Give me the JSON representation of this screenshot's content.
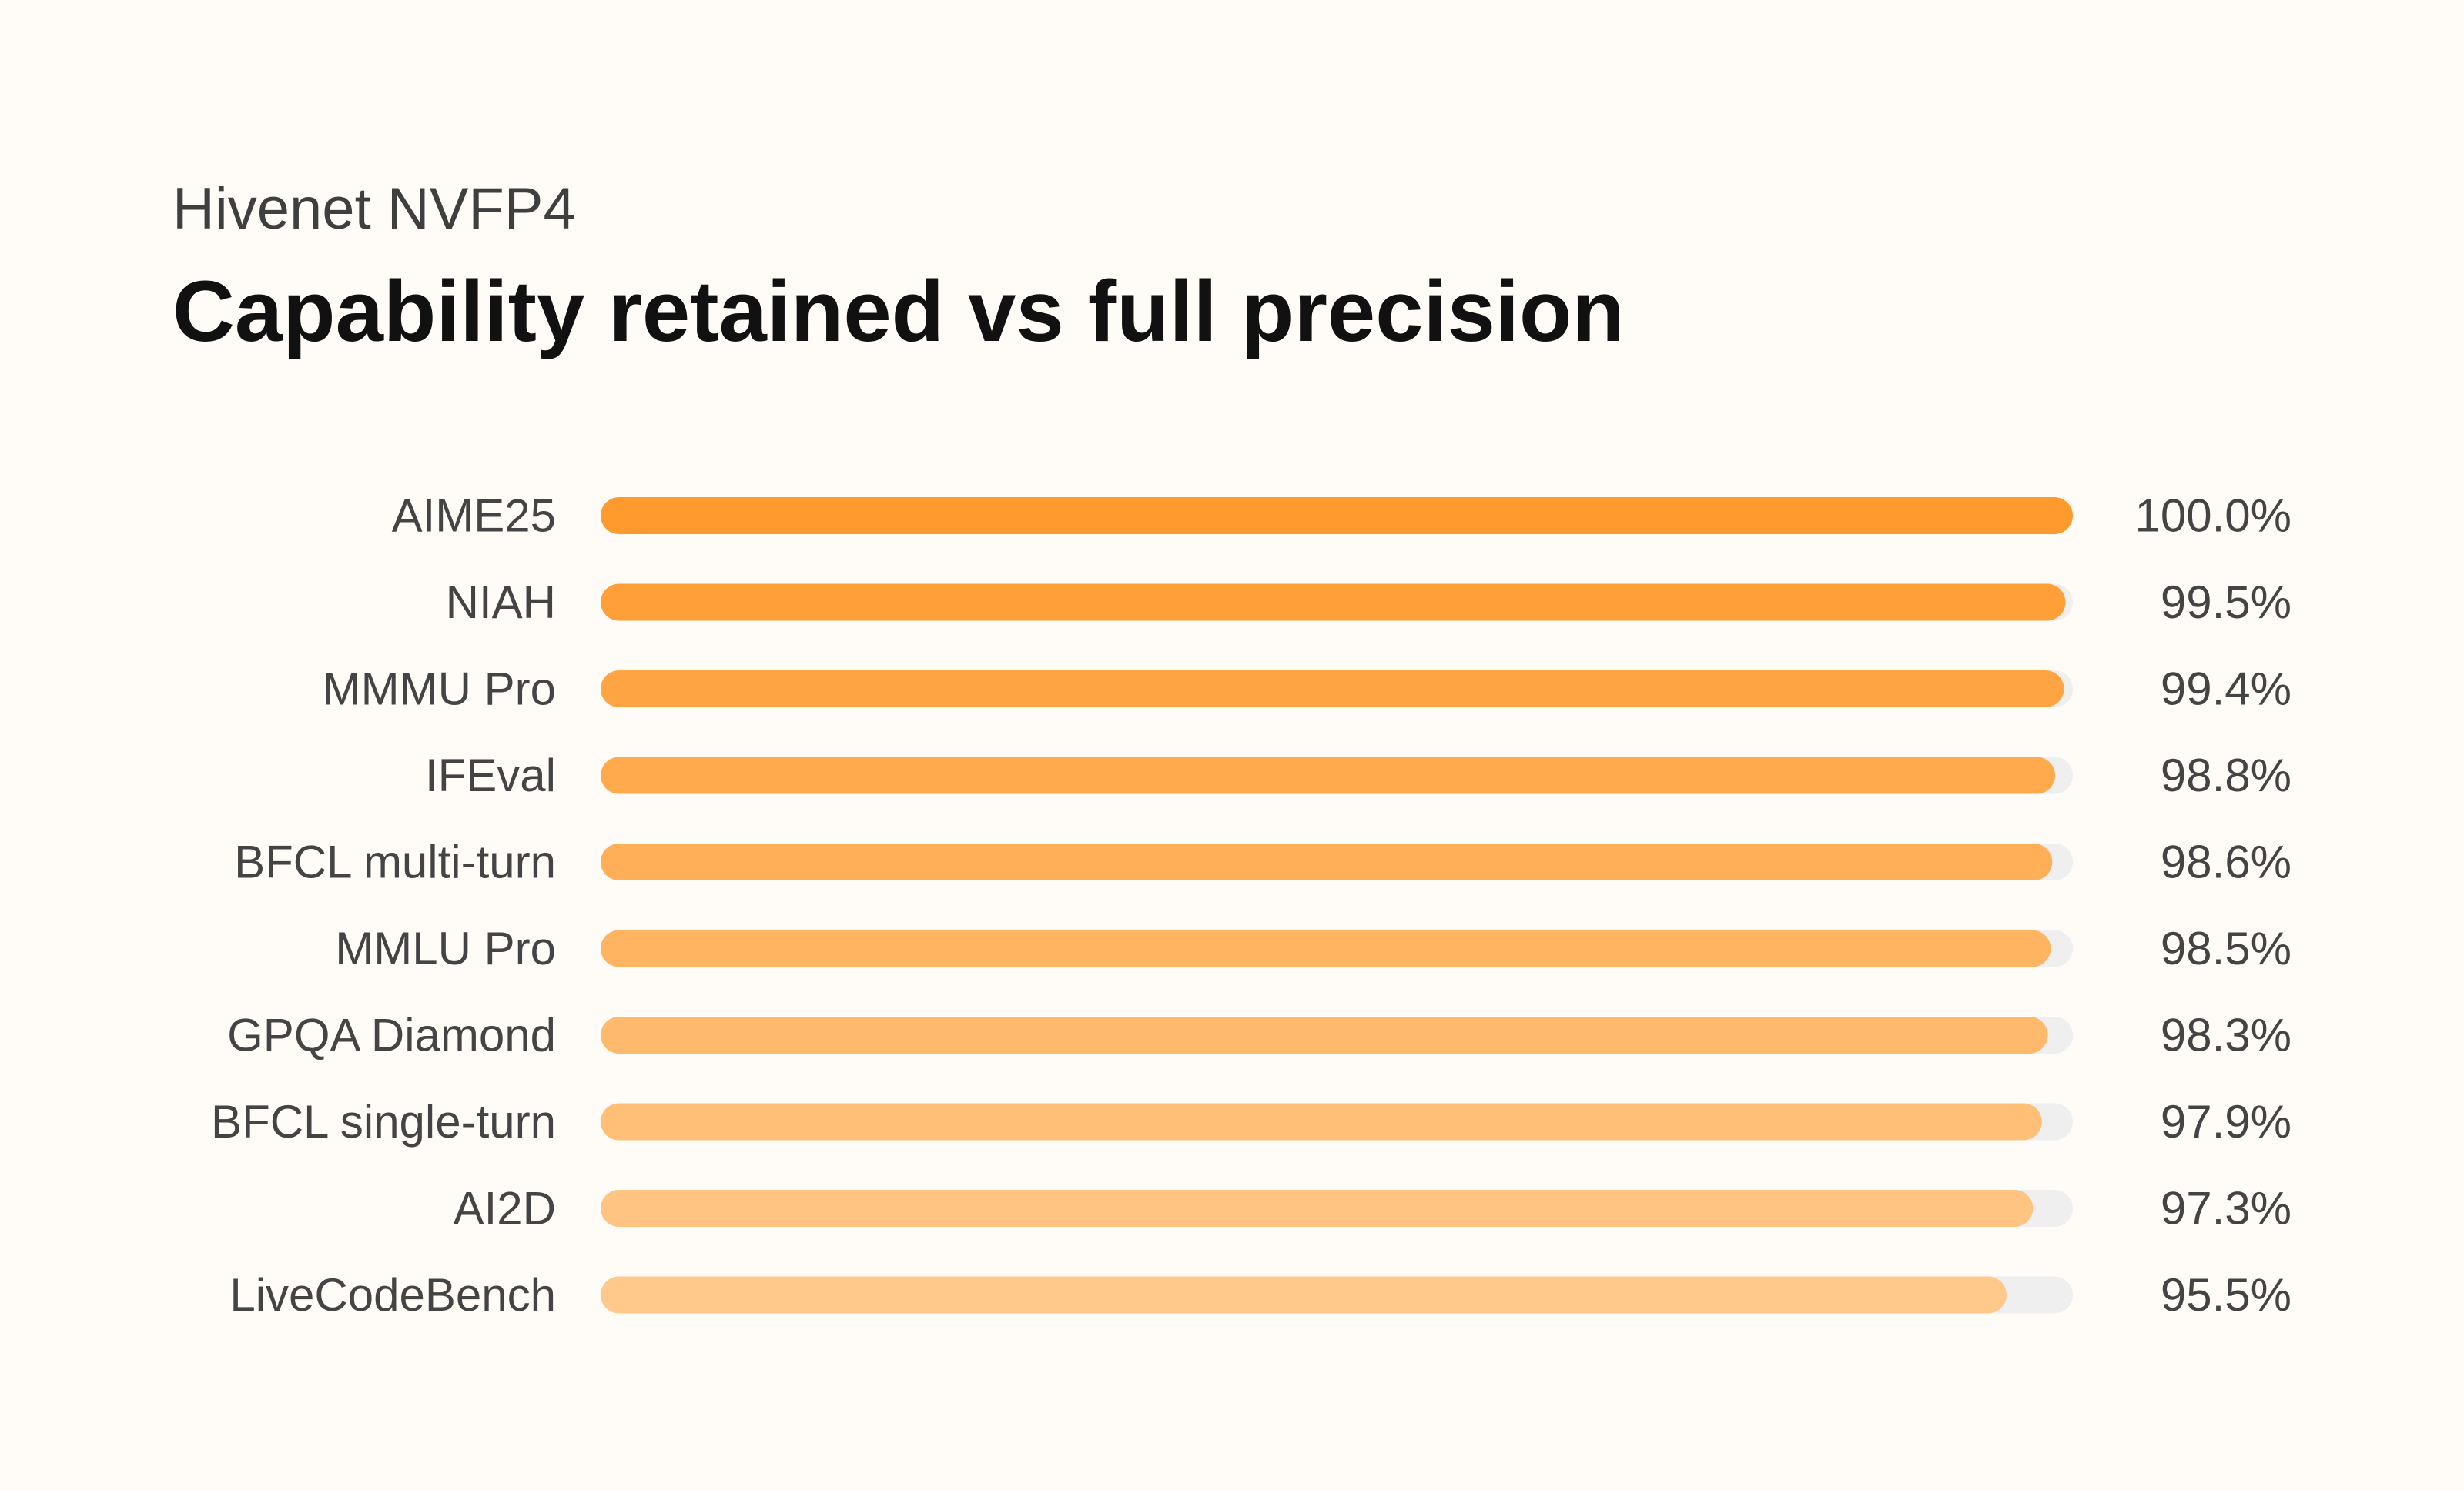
{
  "header": {
    "subtitle": "Hivenet NVFP4",
    "title": "Capability retained vs full precision"
  },
  "colors": {
    "background": "#fffbf7",
    "track": "#efefef",
    "bar_strongest": "#ff9a2e",
    "bar_lightest": "#ffc98c"
  },
  "chart_data": {
    "type": "bar",
    "orientation": "horizontal",
    "title": "Capability retained vs full precision",
    "subtitle": "Hivenet NVFP4",
    "categories": [
      "AIME25",
      "NIAH",
      "MMMU Pro",
      "IFEval",
      "BFCL multi-turn",
      "MMLU Pro",
      "GPQA Diamond",
      "BFCL single-turn",
      "AI2D",
      "LiveCodeBench"
    ],
    "values": [
      100.0,
      99.5,
      99.4,
      98.8,
      98.6,
      98.5,
      98.3,
      97.9,
      97.3,
      95.5
    ],
    "value_labels": [
      "100.0%",
      "99.5%",
      "99.4%",
      "98.8%",
      "98.6%",
      "98.5%",
      "98.3%",
      "97.9%",
      "97.3%",
      "95.5%"
    ],
    "unit": "%",
    "xlim": [
      0,
      100
    ],
    "grid": false,
    "legend": "none"
  }
}
